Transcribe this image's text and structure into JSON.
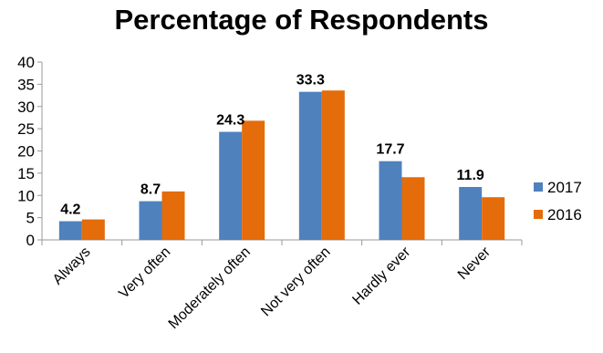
{
  "chart_data": {
    "type": "bar",
    "title": "Percentage of Respondents",
    "xlabel": "",
    "ylabel": "",
    "ylim": [
      0,
      40
    ],
    "yticks": [
      "0",
      "5",
      "10",
      "15",
      "20",
      "25",
      "30",
      "35",
      "40"
    ],
    "categories": [
      "Always",
      "Very often",
      "Moderately often",
      "Not very often",
      "Hardly ever",
      "Never"
    ],
    "series": [
      {
        "name": "2017",
        "color": "#4F81BD",
        "values": [
          4.2,
          8.7,
          24.3,
          33.3,
          17.7,
          11.9
        ],
        "data_labels": [
          "4.2",
          "8.7",
          "24.3",
          "33.3",
          "17.7",
          "11.9"
        ]
      },
      {
        "name": "2016",
        "color": "#E46C0A",
        "values": [
          4.6,
          10.9,
          26.8,
          33.6,
          14.1,
          9.6
        ]
      }
    ],
    "grid": false,
    "legend_position": "right"
  }
}
